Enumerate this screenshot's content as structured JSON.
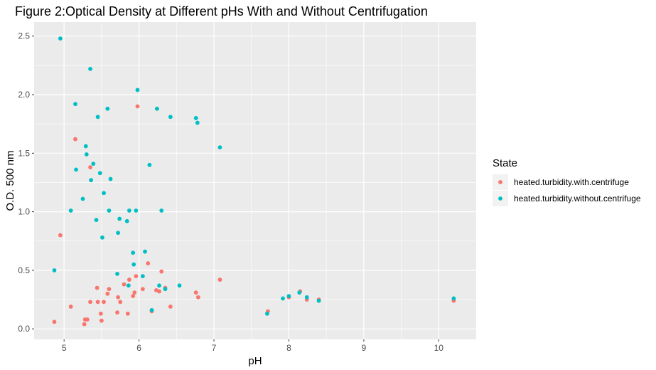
{
  "chart_data": {
    "type": "scatter",
    "title": "Figure 2:Optical Density at Different pHs With and Without Centrifugation",
    "xlabel": "pH",
    "ylabel": "O.D. 500 nm",
    "xlim": [
      4.6,
      10.5
    ],
    "ylim": [
      -0.09,
      2.62
    ],
    "x_ticks": [
      5,
      6,
      7,
      8,
      9,
      10
    ],
    "y_ticks": [
      0.0,
      0.5,
      1.0,
      1.5,
      2.0,
      2.5
    ],
    "x_tick_labels": [
      "5",
      "6",
      "7",
      "8",
      "9",
      "10"
    ],
    "y_tick_labels": [
      "0.0",
      "0.5",
      "1.0",
      "1.5",
      "2.0",
      "2.5"
    ],
    "grid": true,
    "legend_placement": "right",
    "legend_title": "State",
    "panel_background": "#ebebeb",
    "grid_color": "#ffffff",
    "series": [
      {
        "name": "heated.turbidity.with.centrifuge",
        "color": "#f8766d",
        "points": [
          [
            4.87,
            0.06
          ],
          [
            4.95,
            0.8
          ],
          [
            5.09,
            0.19
          ],
          [
            5.15,
            1.62
          ],
          [
            5.27,
            0.04
          ],
          [
            5.28,
            0.08
          ],
          [
            5.31,
            0.08
          ],
          [
            5.35,
            1.38
          ],
          [
            5.35,
            0.23
          ],
          [
            5.44,
            0.35
          ],
          [
            5.45,
            0.23
          ],
          [
            5.49,
            0.13
          ],
          [
            5.5,
            0.07
          ],
          [
            5.53,
            0.23
          ],
          [
            5.58,
            0.3
          ],
          [
            5.6,
            0.34
          ],
          [
            5.71,
            0.14
          ],
          [
            5.72,
            0.27
          ],
          [
            5.75,
            0.23
          ],
          [
            5.8,
            0.38
          ],
          [
            5.85,
            0.13
          ],
          [
            5.87,
            0.42
          ],
          [
            5.92,
            0.28
          ],
          [
            5.94,
            0.31
          ],
          [
            5.96,
            0.45
          ],
          [
            5.98,
            1.9
          ],
          [
            6.05,
            0.34
          ],
          [
            6.12,
            0.56
          ],
          [
            6.17,
            0.15
          ],
          [
            6.23,
            0.33
          ],
          [
            6.27,
            0.32
          ],
          [
            6.3,
            0.49
          ],
          [
            6.35,
            0.35
          ],
          [
            6.42,
            0.19
          ],
          [
            6.76,
            0.31
          ],
          [
            6.79,
            0.27
          ],
          [
            7.08,
            0.42
          ],
          [
            7.72,
            0.15
          ],
          [
            8.0,
            0.27
          ],
          [
            8.15,
            0.32
          ],
          [
            8.24,
            0.25
          ],
          [
            8.4,
            0.25
          ],
          [
            10.2,
            0.24
          ]
        ]
      },
      {
        "name": "heated.turbidity.without.centrifuge",
        "color": "#00bfc4",
        "points": [
          [
            4.87,
            0.5
          ],
          [
            4.95,
            2.48
          ],
          [
            5.09,
            1.01
          ],
          [
            5.15,
            1.92
          ],
          [
            5.16,
            1.36
          ],
          [
            5.25,
            1.11
          ],
          [
            5.29,
            1.56
          ],
          [
            5.3,
            1.49
          ],
          [
            5.35,
            2.22
          ],
          [
            5.36,
            1.27
          ],
          [
            5.39,
            1.41
          ],
          [
            5.43,
            0.93
          ],
          [
            5.45,
            1.81
          ],
          [
            5.48,
            1.33
          ],
          [
            5.51,
            0.78
          ],
          [
            5.53,
            1.16
          ],
          [
            5.58,
            1.88
          ],
          [
            5.6,
            1.01
          ],
          [
            5.62,
            1.28
          ],
          [
            5.71,
            0.47
          ],
          [
            5.72,
            0.82
          ],
          [
            5.74,
            0.94
          ],
          [
            5.84,
            0.92
          ],
          [
            5.86,
            0.37
          ],
          [
            5.87,
            1.01
          ],
          [
            5.92,
            0.65
          ],
          [
            5.93,
            0.55
          ],
          [
            5.96,
            1.01
          ],
          [
            5.98,
            2.04
          ],
          [
            6.05,
            0.45
          ],
          [
            6.08,
            0.66
          ],
          [
            6.14,
            1.4
          ],
          [
            6.17,
            0.16
          ],
          [
            6.24,
            1.88
          ],
          [
            6.27,
            0.37
          ],
          [
            6.3,
            1.01
          ],
          [
            6.35,
            0.34
          ],
          [
            6.42,
            1.81
          ],
          [
            6.54,
            0.37
          ],
          [
            6.76,
            1.8
          ],
          [
            6.78,
            1.76
          ],
          [
            7.08,
            1.55
          ],
          [
            7.71,
            0.13
          ],
          [
            7.92,
            0.26
          ],
          [
            8.0,
            0.28
          ],
          [
            8.14,
            0.31
          ],
          [
            8.24,
            0.27
          ],
          [
            8.4,
            0.24
          ],
          [
            10.2,
            0.26
          ]
        ]
      }
    ]
  }
}
